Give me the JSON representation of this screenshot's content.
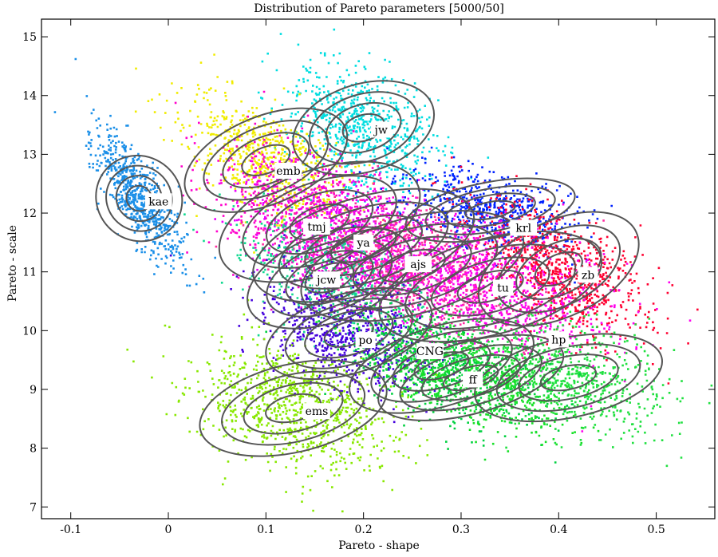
{
  "chart_data": {
    "type": "scatter",
    "title": "Distribution of Pareto parameters [5000/50]",
    "xlabel": "Pareto - shape",
    "ylabel": "Pareto - scale",
    "xlim": [
      -0.13,
      0.56
    ],
    "ylim": [
      6.8,
      15.3
    ],
    "x_ticks": [
      -0.1,
      0,
      0.1,
      0.2,
      0.3,
      0.4,
      0.5
    ],
    "y_ticks": [
      7,
      8,
      9,
      10,
      11,
      12,
      13,
      14,
      15
    ],
    "x_tick_labels": [
      "-0.1",
      "0",
      "0.1",
      "0.2",
      "0.3",
      "0.4",
      "0.5"
    ],
    "y_tick_labels": [
      "7",
      "8",
      "9",
      "10",
      "11",
      "12",
      "13",
      "14",
      "15"
    ],
    "grid": false,
    "contour_color": "#555555",
    "series": [
      {
        "name": "kae",
        "color": "#1a8fe8",
        "center": [
          -0.03,
          12.25
        ],
        "label_pos": [
          -0.01,
          12.2
        ]
      },
      {
        "name": "jw",
        "color": "#00dde0",
        "center": [
          0.2,
          13.45
        ],
        "label_pos": [
          0.218,
          13.42
        ]
      },
      {
        "name": "emb",
        "color": "#f0ec00",
        "center": [
          0.1,
          12.9
        ],
        "label_pos": [
          0.123,
          12.72
        ]
      },
      {
        "name": "tmj",
        "color": "#ff00cc",
        "center": [
          0.155,
          11.85
        ],
        "label_pos": [
          0.152,
          11.77
        ]
      },
      {
        "name": "ya",
        "color": "#ee00ff",
        "center": [
          0.2,
          11.45
        ],
        "label_pos": [
          0.2,
          11.5
        ]
      },
      {
        "name": "ajs",
        "color": "#ff2aa0",
        "center": [
          0.25,
          11.1
        ],
        "label_pos": [
          0.256,
          11.13
        ]
      },
      {
        "name": "jcw",
        "color": "#10d890",
        "center": [
          0.165,
          10.9
        ],
        "label_pos": [
          0.162,
          10.87
        ]
      },
      {
        "name": "krl",
        "color": "#0022ff",
        "center": [
          0.33,
          12.05
        ],
        "label_pos": [
          0.364,
          11.75
        ]
      },
      {
        "name": "zb",
        "color": "#ff0030",
        "center": [
          0.4,
          11.05
        ],
        "label_pos": [
          0.43,
          10.95
        ]
      },
      {
        "name": "tu",
        "color": "#ff00ee",
        "center": [
          0.33,
          10.75
        ],
        "label_pos": [
          0.343,
          10.73
        ]
      },
      {
        "name": "hp",
        "color": "#20e040",
        "center": [
          0.41,
          9.2
        ],
        "label_pos": [
          0.4,
          9.85
        ]
      },
      {
        "name": "po",
        "color": "#4400dd",
        "center": [
          0.185,
          9.95
        ],
        "label_pos": [
          0.202,
          9.84
        ]
      },
      {
        "name": "CNG",
        "color": "#00d040",
        "center": [
          0.28,
          9.4
        ],
        "label_pos": [
          0.268,
          9.65
        ]
      },
      {
        "name": "ff",
        "color": "#18e028",
        "center": [
          0.31,
          9.2
        ],
        "label_pos": [
          0.312,
          9.17
        ]
      },
      {
        "name": "ems",
        "color": "#88e800",
        "center": [
          0.128,
          8.68
        ],
        "label_pos": [
          0.152,
          8.63
        ]
      }
    ]
  }
}
